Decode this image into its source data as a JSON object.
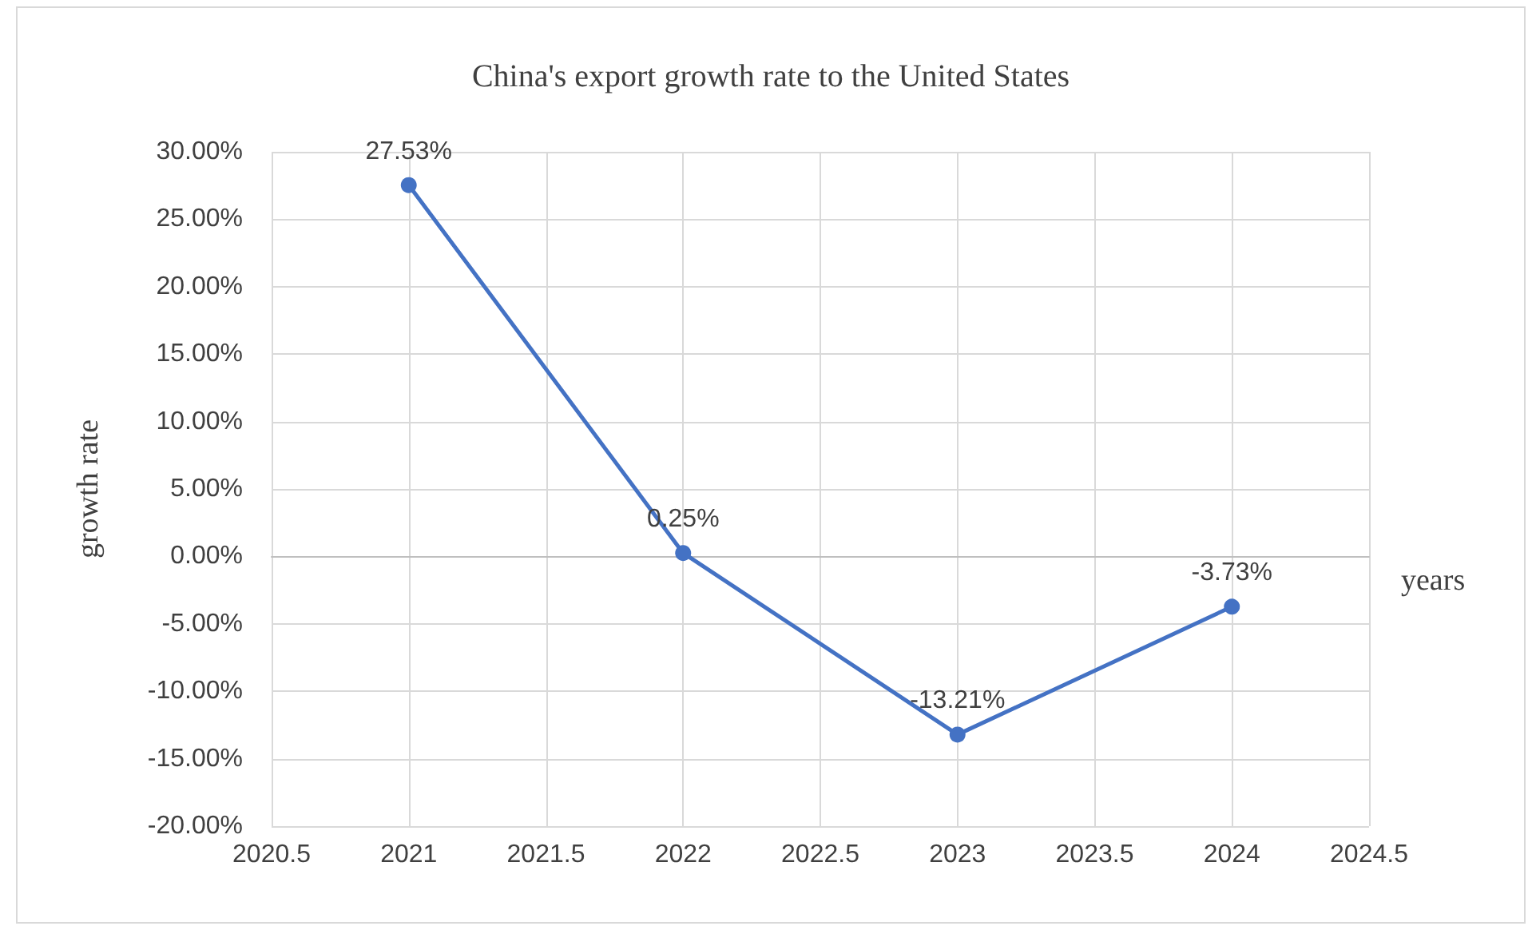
{
  "chart_data": {
    "type": "line",
    "title": "China's export growth rate to the United States",
    "xlabel": "years",
    "ylabel": "growth rate",
    "x": [
      2021,
      2022,
      2023,
      2024
    ],
    "series": [
      {
        "color": "#4472c4",
        "values": [
          27.53,
          0.25,
          -13.21,
          -3.73
        ],
        "value_labels": [
          "27.53%",
          "0.25%",
          "-13.21%",
          "-3.73%"
        ]
      }
    ],
    "xlim": [
      2020.5,
      2024.5
    ],
    "xticks": [
      2020.5,
      2021,
      2021.5,
      2022,
      2022.5,
      2023,
      2023.5,
      2024,
      2024.5
    ],
    "ylim": [
      -20,
      30
    ],
    "yticks": [
      {
        "value": -20,
        "label": "-20.00%"
      },
      {
        "value": -15,
        "label": "-15.00%"
      },
      {
        "value": -10,
        "label": "-10.00%"
      },
      {
        "value": -5,
        "label": "-5.00%"
      },
      {
        "value": 0,
        "label": "0.00%"
      },
      {
        "value": 5,
        "label": "5.00%"
      },
      {
        "value": 10,
        "label": "10.00%"
      },
      {
        "value": 15,
        "label": "15.00%"
      },
      {
        "value": 20,
        "label": "20.00%"
      },
      {
        "value": 25,
        "label": "25.00%"
      },
      {
        "value": 30,
        "label": "30.00%"
      }
    ],
    "grid": true,
    "marker": "circle",
    "line_style": "solid"
  }
}
